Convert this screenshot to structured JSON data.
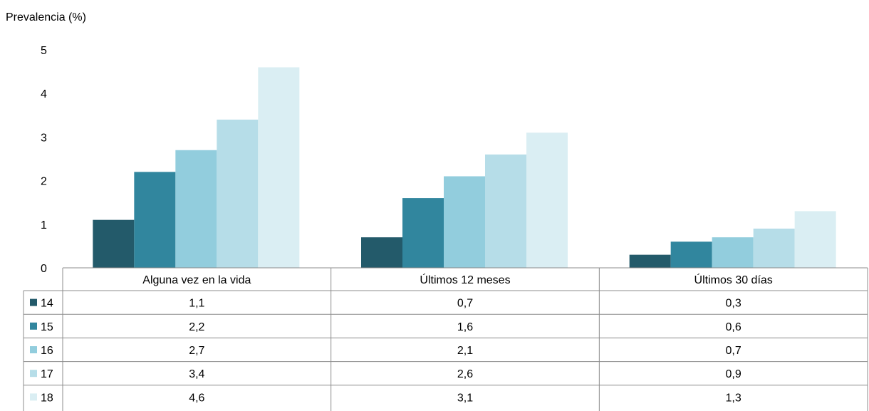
{
  "chart_data": {
    "type": "bar",
    "title": "",
    "ylabel": "Prevalencia (%)",
    "xlabel": "",
    "ylim": [
      0,
      5
    ],
    "yticks": [
      "0",
      "1",
      "2",
      "3",
      "4",
      "5"
    ],
    "categories": [
      "Alguna vez en la vida",
      "Últimos 12 meses",
      "Últimos 30 días"
    ],
    "grid": false,
    "legend": "data-table-below",
    "series": [
      {
        "name": "14",
        "color": "#235a6a",
        "values": [
          1.1,
          0.7,
          0.3
        ],
        "labels": [
          "1,1",
          "0,7",
          "0,3"
        ]
      },
      {
        "name": "15",
        "color": "#31869e",
        "values": [
          2.2,
          1.6,
          0.6
        ],
        "labels": [
          "2,2",
          "1,6",
          "0,6"
        ]
      },
      {
        "name": "16",
        "color": "#92cddd",
        "values": [
          2.7,
          2.1,
          0.7
        ],
        "labels": [
          "2,7",
          "2,1",
          "0,7"
        ]
      },
      {
        "name": "17",
        "color": "#b6dde8",
        "values": [
          3.4,
          2.6,
          0.9
        ],
        "labels": [
          "3,4",
          "2,6",
          "0,9"
        ]
      },
      {
        "name": "18",
        "color": "#daeef3",
        "values": [
          4.6,
          3.1,
          1.3
        ],
        "labels": [
          "4,6",
          "3,1",
          "1,3"
        ]
      }
    ]
  }
}
